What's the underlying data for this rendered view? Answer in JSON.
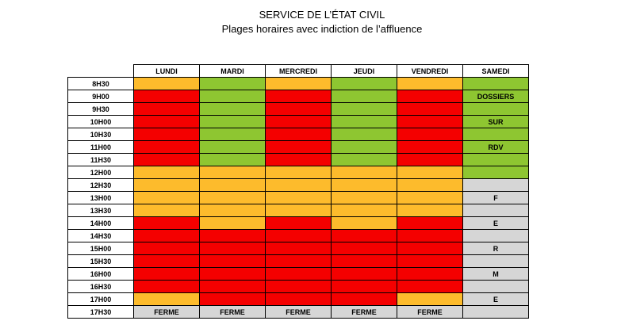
{
  "title": "SERVICE DE L’ÉTAT CIVIL",
  "subtitle": "Plages horaires avec indiction de l’affluence",
  "colors": {
    "O": "#fdbb2c",
    "R": "#f40000",
    "G": "#8ec631",
    "X": "#d6d6d6"
  },
  "days": [
    "LUNDI",
    "MARDI",
    "MERCREDI",
    "JEUDI",
    "VENDREDI",
    "SAMEDI"
  ],
  "rows": [
    {
      "time": "8H30",
      "cells": [
        {
          "c": "O"
        },
        {
          "c": "G"
        },
        {
          "c": "O"
        },
        {
          "c": "G"
        },
        {
          "c": "O"
        },
        {
          "c": "G"
        }
      ]
    },
    {
      "time": "9H00",
      "cells": [
        {
          "c": "R"
        },
        {
          "c": "G"
        },
        {
          "c": "R"
        },
        {
          "c": "G"
        },
        {
          "c": "R"
        },
        {
          "c": "G",
          "t": "DOSSIERS"
        }
      ]
    },
    {
      "time": "9H30",
      "cells": [
        {
          "c": "R"
        },
        {
          "c": "G"
        },
        {
          "c": "R"
        },
        {
          "c": "G"
        },
        {
          "c": "R"
        },
        {
          "c": "G"
        }
      ]
    },
    {
      "time": "10H00",
      "cells": [
        {
          "c": "R"
        },
        {
          "c": "G"
        },
        {
          "c": "R"
        },
        {
          "c": "G"
        },
        {
          "c": "R"
        },
        {
          "c": "G",
          "t": "SUR"
        }
      ]
    },
    {
      "time": "10H30",
      "cells": [
        {
          "c": "R"
        },
        {
          "c": "G"
        },
        {
          "c": "R"
        },
        {
          "c": "G"
        },
        {
          "c": "R"
        },
        {
          "c": "G"
        }
      ]
    },
    {
      "time": "11H00",
      "cells": [
        {
          "c": "R"
        },
        {
          "c": "G"
        },
        {
          "c": "R"
        },
        {
          "c": "G"
        },
        {
          "c": "R"
        },
        {
          "c": "G",
          "t": "RDV"
        }
      ]
    },
    {
      "time": "11H30",
      "cells": [
        {
          "c": "R"
        },
        {
          "c": "G"
        },
        {
          "c": "R"
        },
        {
          "c": "G"
        },
        {
          "c": "R"
        },
        {
          "c": "G"
        }
      ]
    },
    {
      "time": "12H00",
      "cells": [
        {
          "c": "O"
        },
        {
          "c": "O"
        },
        {
          "c": "O"
        },
        {
          "c": "O"
        },
        {
          "c": "O"
        },
        {
          "c": "G"
        }
      ]
    },
    {
      "time": "12H30",
      "cells": [
        {
          "c": "O"
        },
        {
          "c": "O"
        },
        {
          "c": "O"
        },
        {
          "c": "O"
        },
        {
          "c": "O"
        },
        {
          "c": "X"
        }
      ]
    },
    {
      "time": "13H00",
      "cells": [
        {
          "c": "O"
        },
        {
          "c": "O"
        },
        {
          "c": "O"
        },
        {
          "c": "O"
        },
        {
          "c": "O"
        },
        {
          "c": "X",
          "t": "F"
        }
      ]
    },
    {
      "time": "13H30",
      "cells": [
        {
          "c": "O"
        },
        {
          "c": "O"
        },
        {
          "c": "O"
        },
        {
          "c": "O"
        },
        {
          "c": "O"
        },
        {
          "c": "X"
        }
      ]
    },
    {
      "time": "14H00",
      "cells": [
        {
          "c": "R"
        },
        {
          "c": "O"
        },
        {
          "c": "R"
        },
        {
          "c": "O"
        },
        {
          "c": "R"
        },
        {
          "c": "X",
          "t": "E"
        }
      ]
    },
    {
      "time": "14H30",
      "cells": [
        {
          "c": "R"
        },
        {
          "c": "R"
        },
        {
          "c": "R"
        },
        {
          "c": "R"
        },
        {
          "c": "R"
        },
        {
          "c": "X"
        }
      ]
    },
    {
      "time": "15H00",
      "cells": [
        {
          "c": "R"
        },
        {
          "c": "R"
        },
        {
          "c": "R"
        },
        {
          "c": "R"
        },
        {
          "c": "R"
        },
        {
          "c": "X",
          "t": "R"
        }
      ]
    },
    {
      "time": "15H30",
      "cells": [
        {
          "c": "R"
        },
        {
          "c": "R"
        },
        {
          "c": "R"
        },
        {
          "c": "R"
        },
        {
          "c": "R"
        },
        {
          "c": "X"
        }
      ]
    },
    {
      "time": "16H00",
      "cells": [
        {
          "c": "R"
        },
        {
          "c": "R"
        },
        {
          "c": "R"
        },
        {
          "c": "R"
        },
        {
          "c": "R"
        },
        {
          "c": "X",
          "t": "M"
        }
      ]
    },
    {
      "time": "16H30",
      "cells": [
        {
          "c": "R"
        },
        {
          "c": "R"
        },
        {
          "c": "R"
        },
        {
          "c": "R"
        },
        {
          "c": "R"
        },
        {
          "c": "X"
        }
      ]
    },
    {
      "time": "17H00",
      "cells": [
        {
          "c": "O"
        },
        {
          "c": "R"
        },
        {
          "c": "R"
        },
        {
          "c": "R"
        },
        {
          "c": "O"
        },
        {
          "c": "X",
          "t": "E"
        }
      ]
    },
    {
      "time": "17H30",
      "cells": [
        {
          "c": "X",
          "t": "FERME"
        },
        {
          "c": "X",
          "t": "FERME"
        },
        {
          "c": "X",
          "t": "FERME"
        },
        {
          "c": "X",
          "t": "FERME"
        },
        {
          "c": "X",
          "t": "FERME"
        },
        {
          "c": "X"
        }
      ]
    }
  ]
}
